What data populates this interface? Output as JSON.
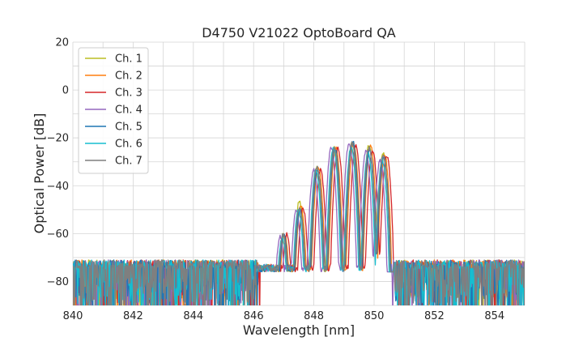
{
  "chart_data": {
    "type": "line",
    "title": "D4750 V21022 OptoBoard QA",
    "xlabel": "Wavelength [nm]",
    "ylabel": "Optical Power [dB]",
    "xlim": [
      840,
      855
    ],
    "ylim": [
      -90,
      20
    ],
    "xticks": [
      "840",
      "842",
      "844",
      "846",
      "848",
      "850",
      "852",
      "854"
    ],
    "yticks": [
      "20",
      "0",
      "−20",
      "−40",
      "−60",
      "−80"
    ],
    "xtick_values": [
      840,
      842,
      844,
      846,
      848,
      850,
      852,
      854
    ],
    "ytick_values": [
      20,
      0,
      -20,
      -40,
      -60,
      -80
    ],
    "grid": true,
    "legend_position": "top-left",
    "noise_floor_db": -74,
    "series": [
      {
        "name": "Ch. 1",
        "color": "#bcbd22",
        "shift_nm": 0.0,
        "peaks": [
          [
            846.45,
            -71
          ],
          [
            846.98,
            -58
          ],
          [
            847.52,
            -44
          ],
          [
            848.1,
            -30
          ],
          [
            848.68,
            -22
          ],
          [
            849.27,
            -20
          ],
          [
            849.83,
            -21
          ],
          [
            850.3,
            -24
          ]
        ]
      },
      {
        "name": "Ch. 2",
        "color": "#ff7f0e",
        "shift_nm": 0.05,
        "peaks": [
          [
            846.45,
            -71
          ],
          [
            846.98,
            -58
          ],
          [
            847.52,
            -46
          ],
          [
            848.1,
            -30
          ],
          [
            848.68,
            -22
          ],
          [
            849.27,
            -20
          ],
          [
            849.83,
            -21
          ],
          [
            850.3,
            -25
          ]
        ]
      },
      {
        "name": "Ch. 3",
        "color": "#d62728",
        "shift_nm": 0.12,
        "peaks": [
          [
            846.45,
            -71
          ],
          [
            846.98,
            -58
          ],
          [
            847.52,
            -47
          ],
          [
            848.1,
            -31
          ],
          [
            848.68,
            -22
          ],
          [
            849.27,
            -21
          ],
          [
            849.83,
            -23
          ],
          [
            850.3,
            -25
          ]
        ]
      },
      {
        "name": "Ch. 4",
        "color": "#9467bd",
        "shift_nm": -0.1,
        "peaks": [
          [
            846.45,
            -71
          ],
          [
            846.98,
            -59
          ],
          [
            847.52,
            -48
          ],
          [
            848.1,
            -31
          ],
          [
            848.68,
            -22
          ],
          [
            849.27,
            -20
          ],
          [
            849.83,
            -23
          ],
          [
            850.3,
            -27
          ]
        ]
      },
      {
        "name": "Ch. 5",
        "color": "#1f77b4",
        "shift_nm": 0.02,
        "peaks": [
          [
            846.45,
            -71
          ],
          [
            846.98,
            -58
          ],
          [
            847.52,
            -48
          ],
          [
            848.1,
            -31
          ],
          [
            848.68,
            -22
          ],
          [
            849.27,
            -19
          ],
          [
            849.83,
            -23
          ],
          [
            850.3,
            -26
          ]
        ]
      },
      {
        "name": "Ch. 6",
        "color": "#17becf",
        "shift_nm": -0.03,
        "peaks": [
          [
            846.45,
            -71
          ],
          [
            846.98,
            -59
          ],
          [
            847.52,
            -48
          ],
          [
            848.1,
            -31
          ],
          [
            848.68,
            -22
          ],
          [
            849.27,
            -21
          ],
          [
            849.83,
            -24
          ],
          [
            850.3,
            -27
          ]
        ]
      },
      {
        "name": "Ch. 7",
        "color": "#7f7f7f",
        "shift_nm": 0.0,
        "peaks": [
          [
            846.45,
            -71
          ],
          [
            846.98,
            -58
          ],
          [
            847.52,
            -47
          ],
          [
            848.1,
            -30
          ],
          [
            848.68,
            -22
          ],
          [
            849.27,
            -20
          ],
          [
            849.83,
            -22
          ],
          [
            850.3,
            -25
          ]
        ]
      }
    ]
  }
}
